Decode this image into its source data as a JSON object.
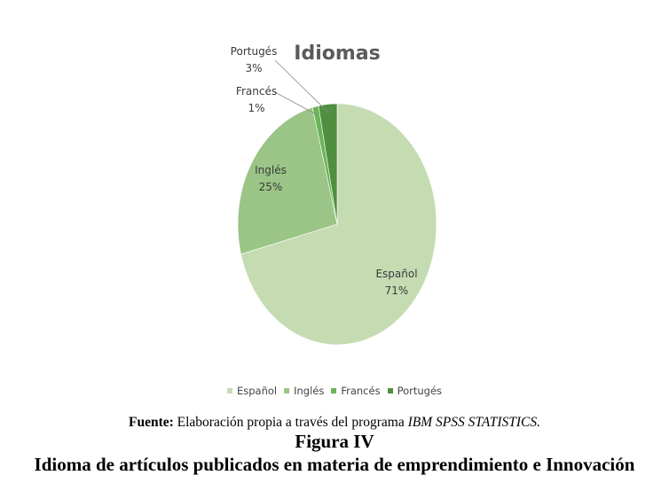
{
  "chart_data": {
    "type": "pie",
    "title": "Idiomas",
    "slices": [
      {
        "name": "Español",
        "pct_label": "71%",
        "value": 71,
        "color": "#c5dcb3"
      },
      {
        "name": "Inglés",
        "pct_label": "25%",
        "value": 25,
        "color": "#9ac586"
      },
      {
        "name": "Francés",
        "pct_label": "1%",
        "value": 1,
        "color": "#6cb457"
      },
      {
        "name": "Portugés",
        "pct_label": "3%",
        "value": 3,
        "color": "#4f8f3f"
      }
    ],
    "legend_position": "bottom"
  },
  "caption": {
    "source_bold": "Fuente:",
    "source_plain": " Elaboración propia a través del programa ",
    "source_italic": "IBM SPSS STATISTICS.",
    "figure_label": "Figura IV",
    "figure_title": "Idioma de artículos publicados en materia de emprendimiento e Innovación"
  }
}
